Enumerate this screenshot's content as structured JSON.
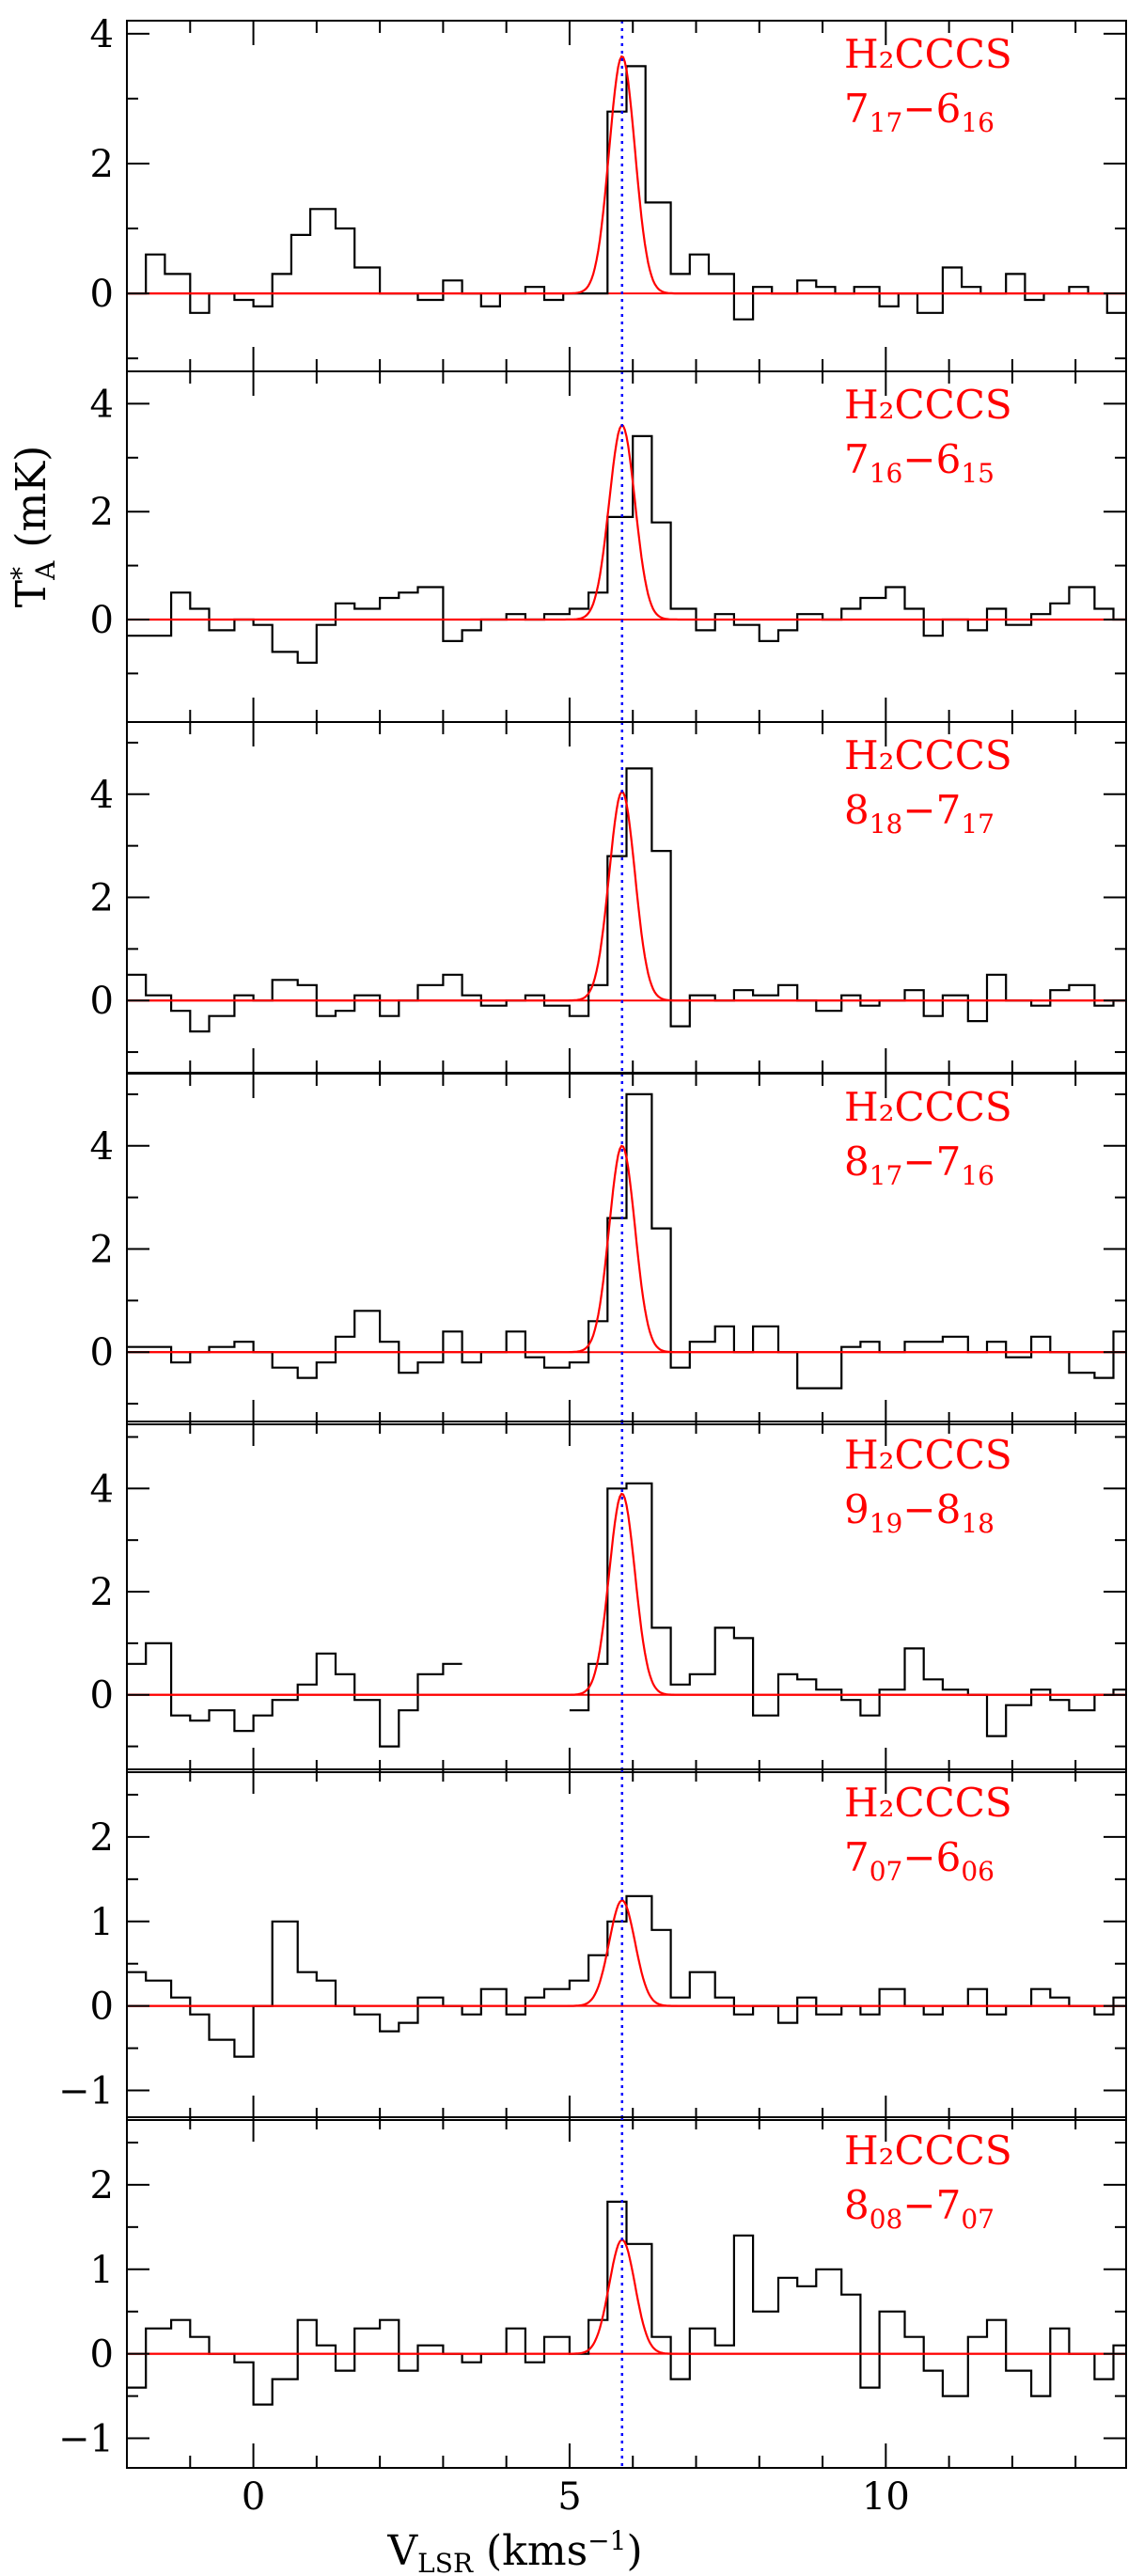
{
  "figure": {
    "xlabel": {
      "main": "V",
      "sub": "LSR",
      "rest": " (kms",
      "sup": "−1",
      "close": ")"
    },
    "ylabel": {
      "main": "T",
      "sup": "*",
      "sub": "A",
      "rest": " (mK)"
    },
    "xlim": [
      -2,
      13.8
    ],
    "xticks": [
      0,
      5,
      10
    ],
    "vlsr_line": 5.83,
    "colors": {
      "spectrum": "#000000",
      "fit": "#ff0000",
      "vline": "#0000ff",
      "label": "#ff0000"
    }
  },
  "chart_data": [
    {
      "type": "line",
      "title": "",
      "xlabel": "V_LSR (kms^-1)",
      "ylabel": "T*_A (mK)",
      "label": {
        "molecule": "H₂CCCS",
        "q1": "7",
        "s1": "17",
        "q2": "6",
        "s2": "16"
      },
      "ylim": [
        -1.2,
        4.2
      ],
      "yticks": [
        0,
        2,
        4
      ],
      "ytick_labels": [
        "0",
        "2",
        "4"
      ],
      "step_edges": [
        -2.0,
        -1.7,
        -1.4,
        -1.0,
        -0.7,
        -0.3,
        0.0,
        0.3,
        0.6,
        0.9,
        1.3,
        1.6,
        2.0,
        2.3,
        2.6,
        3.0,
        3.3,
        3.6,
        3.9,
        4.3,
        4.6,
        4.9,
        5.2,
        5.6,
        5.9,
        6.2,
        6.6,
        6.9,
        7.2,
        7.6,
        7.9,
        8.2,
        8.6,
        8.9,
        9.2,
        9.5,
        9.9,
        10.2,
        10.5,
        10.9,
        11.2,
        11.5,
        11.9,
        12.2,
        12.5,
        12.9,
        13.2,
        13.5,
        13.8
      ],
      "spectrum": [
        0.0,
        0.6,
        0.3,
        -0.3,
        0.0,
        -0.1,
        -0.2,
        0.3,
        0.9,
        1.3,
        1.0,
        0.4,
        0.0,
        0.0,
        -0.1,
        0.2,
        0.0,
        -0.2,
        0.0,
        0.1,
        -0.1,
        0.0,
        0.0,
        2.8,
        3.5,
        1.4,
        0.3,
        0.6,
        0.3,
        -0.4,
        0.1,
        0.0,
        0.2,
        0.1,
        0.0,
        0.1,
        -0.2,
        0.0,
        -0.3,
        0.4,
        0.1,
        0.0,
        0.3,
        -0.1,
        0.0,
        0.1,
        0.0,
        -0.3
      ],
      "fit": {
        "amplitude": 3.65,
        "center": 5.83,
        "fwhm": 0.48
      }
    },
    {
      "type": "line",
      "title": "",
      "xlabel": "V_LSR (kms^-1)",
      "ylabel": "T*_A (mK)",
      "label": {
        "molecule": "H₂CCCS",
        "q1": "7",
        "s1": "16",
        "q2": "6",
        "s2": "15"
      },
      "ylim": [
        -1.9,
        4.6
      ],
      "yticks": [
        0,
        2,
        4
      ],
      "ytick_labels": [
        "0",
        "2",
        "4"
      ],
      "step_edges": [
        -2.0,
        -1.7,
        -1.3,
        -1.0,
        -0.7,
        -0.3,
        0.0,
        0.3,
        0.7,
        1.0,
        1.3,
        1.6,
        2.0,
        2.3,
        2.6,
        3.0,
        3.3,
        3.6,
        4.0,
        4.3,
        4.6,
        5.0,
        5.3,
        5.6,
        6.0,
        6.3,
        6.6,
        7.0,
        7.3,
        7.6,
        8.0,
        8.3,
        8.6,
        9.0,
        9.3,
        9.6,
        10.0,
        10.3,
        10.6,
        10.9,
        11.3,
        11.6,
        11.9,
        12.3,
        12.6,
        12.9,
        13.3,
        13.6,
        13.8
      ],
      "spectrum": [
        -0.3,
        -0.3,
        0.5,
        0.2,
        -0.2,
        0.0,
        -0.1,
        -0.6,
        -0.8,
        -0.1,
        0.3,
        0.2,
        0.4,
        0.5,
        0.6,
        -0.4,
        -0.2,
        0.0,
        0.1,
        0.0,
        0.1,
        0.2,
        0.5,
        1.9,
        3.4,
        1.8,
        0.2,
        -0.2,
        0.1,
        -0.1,
        -0.4,
        -0.2,
        0.1,
        0.0,
        0.2,
        0.4,
        0.6,
        0.2,
        -0.3,
        0.0,
        -0.2,
        0.2,
        -0.1,
        0.1,
        0.3,
        0.6,
        0.2,
        0.0
      ],
      "fit": {
        "amplitude": 3.6,
        "center": 5.83,
        "fwhm": 0.48
      }
    },
    {
      "type": "line",
      "title": "",
      "xlabel": "V_LSR (kms^-1)",
      "ylabel": "T*_A (mK)",
      "label": {
        "molecule": "H₂CCCS",
        "q1": "8",
        "s1": "18",
        "q2": "7",
        "s2": "17"
      },
      "ylim": [
        -1.4,
        5.4
      ],
      "yticks": [
        0,
        2,
        4
      ],
      "ytick_labels": [
        "0",
        "2",
        "4"
      ],
      "step_edges": [
        -2.0,
        -1.7,
        -1.3,
        -1.0,
        -0.7,
        -0.3,
        0.0,
        0.3,
        0.7,
        1.0,
        1.3,
        1.6,
        2.0,
        2.3,
        2.6,
        3.0,
        3.3,
        3.6,
        4.0,
        4.3,
        4.6,
        5.0,
        5.3,
        5.6,
        5.9,
        6.3,
        6.6,
        6.9,
        7.3,
        7.6,
        7.9,
        8.3,
        8.6,
        8.9,
        9.3,
        9.6,
        9.9,
        10.3,
        10.6,
        10.9,
        11.3,
        11.6,
        11.9,
        12.3,
        12.6,
        12.9,
        13.3,
        13.6,
        13.8
      ],
      "spectrum": [
        0.5,
        0.1,
        -0.2,
        -0.6,
        -0.3,
        0.1,
        0.0,
        0.4,
        0.3,
        -0.3,
        -0.2,
        0.1,
        -0.3,
        0.0,
        0.3,
        0.5,
        0.1,
        -0.1,
        0.0,
        0.1,
        -0.1,
        -0.3,
        0.3,
        2.8,
        4.5,
        2.9,
        -0.5,
        0.1,
        0.0,
        0.2,
        0.1,
        0.3,
        0.0,
        -0.2,
        0.1,
        -0.1,
        0.0,
        0.2,
        -0.3,
        0.1,
        -0.4,
        0.5,
        0.0,
        -0.1,
        0.2,
        0.3,
        -0.1,
        0.0
      ],
      "fit": {
        "amplitude": 4.05,
        "center": 5.83,
        "fwhm": 0.48
      }
    },
    {
      "type": "line",
      "title": "",
      "xlabel": "V_LSR (kms^-1)",
      "ylabel": "T*_A (mK)",
      "label": {
        "molecule": "H₂CCCS",
        "q1": "8",
        "s1": "17",
        "q2": "7",
        "s2": "16"
      },
      "ylim": [
        -1.4,
        5.4
      ],
      "yticks": [
        0,
        2,
        4
      ],
      "ytick_labels": [
        "0",
        "2",
        "4"
      ],
      "step_edges": [
        -2.0,
        -1.7,
        -1.3,
        -1.0,
        -0.7,
        -0.3,
        0.0,
        0.3,
        0.7,
        1.0,
        1.3,
        1.6,
        2.0,
        2.3,
        2.6,
        3.0,
        3.3,
        3.6,
        4.0,
        4.3,
        4.6,
        5.0,
        5.3,
        5.6,
        5.9,
        6.3,
        6.6,
        6.9,
        7.3,
        7.6,
        7.9,
        8.3,
        8.6,
        8.9,
        9.3,
        9.6,
        9.9,
        10.3,
        10.6,
        10.9,
        11.3,
        11.6,
        11.9,
        12.3,
        12.6,
        12.9,
        13.3,
        13.6,
        13.8
      ],
      "spectrum": [
        0.1,
        0.1,
        -0.2,
        0.0,
        0.1,
        0.2,
        0.0,
        -0.3,
        -0.5,
        -0.2,
        0.3,
        0.8,
        0.2,
        -0.4,
        -0.2,
        0.4,
        -0.2,
        0.0,
        0.4,
        -0.1,
        -0.3,
        -0.2,
        0.6,
        2.6,
        5.0,
        2.4,
        -0.3,
        0.2,
        0.5,
        0.0,
        0.5,
        0.0,
        -0.7,
        -0.7,
        0.1,
        0.2,
        0.0,
        0.2,
        0.2,
        0.3,
        0.0,
        0.2,
        -0.1,
        0.3,
        0.0,
        -0.4,
        -0.5,
        0.4
      ],
      "fit": {
        "amplitude": 4.0,
        "center": 5.83,
        "fwhm": 0.48
      }
    },
    {
      "type": "line",
      "title": "",
      "xlabel": "V_LSR (kms^-1)",
      "ylabel": "T*_A (mK)",
      "label": {
        "molecule": "H₂CCCS",
        "q1": "9",
        "s1": "19",
        "q2": "8",
        "s2": "18"
      },
      "ylim": [
        -1.5,
        5.3
      ],
      "yticks": [
        0,
        2,
        4
      ],
      "ytick_labels": [
        "0",
        "2",
        "4"
      ],
      "step_edges": [
        -2.0,
        -1.7,
        -1.3,
        -1.0,
        -0.7,
        -0.3,
        0.0,
        0.3,
        0.7,
        1.0,
        1.3,
        1.6,
        2.0,
        2.3,
        2.6,
        3.0,
        3.3,
        3.6,
        4.0,
        4.3,
        4.6,
        5.0,
        5.3,
        5.6,
        5.9,
        6.3,
        6.6,
        6.9,
        7.3,
        7.6,
        7.9,
        8.3,
        8.6,
        8.9,
        9.3,
        9.6,
        9.9,
        10.3,
        10.6,
        10.9,
        11.3,
        11.6,
        11.9,
        12.3,
        12.6,
        12.9,
        13.3,
        13.6,
        13.8
      ],
      "spectrum": [
        0.6,
        1.0,
        -0.4,
        -0.5,
        -0.3,
        -0.7,
        -0.4,
        -0.1,
        0.2,
        0.8,
        0.4,
        -0.1,
        -1.0,
        -0.3,
        0.4,
        0.6,
        null,
        null,
        null,
        null,
        null,
        -0.3,
        0.6,
        4.0,
        4.1,
        1.3,
        0.2,
        0.4,
        1.3,
        1.1,
        -0.4,
        0.4,
        0.3,
        0.1,
        -0.1,
        -0.4,
        0.1,
        0.9,
        0.3,
        0.1,
        0.0,
        -0.8,
        -0.2,
        0.1,
        -0.1,
        -0.3,
        0.0,
        0.1
      ],
      "fit": {
        "amplitude": 3.9,
        "center": 5.83,
        "fwhm": 0.48
      }
    },
    {
      "type": "line",
      "title": "",
      "xlabel": "V_LSR (kms^-1)",
      "ylabel": "T*_A (mK)",
      "label": {
        "molecule": "H₂CCCS",
        "q1": "7",
        "s1": "07",
        "q2": "6",
        "s2": "06"
      },
      "ylim": [
        -1.35,
        2.8
      ],
      "yticks": [
        -1,
        0,
        1,
        2
      ],
      "ytick_labels": [
        "−1",
        "0",
        "1",
        "2"
      ],
      "step_edges": [
        -2.0,
        -1.7,
        -1.3,
        -1.0,
        -0.7,
        -0.3,
        0.0,
        0.3,
        0.7,
        1.0,
        1.3,
        1.6,
        2.0,
        2.3,
        2.6,
        3.0,
        3.3,
        3.6,
        4.0,
        4.3,
        4.6,
        5.0,
        5.3,
        5.6,
        5.9,
        6.3,
        6.6,
        6.9,
        7.3,
        7.6,
        7.9,
        8.3,
        8.6,
        8.9,
        9.3,
        9.6,
        9.9,
        10.3,
        10.6,
        10.9,
        11.3,
        11.6,
        11.9,
        12.3,
        12.6,
        12.9,
        13.3,
        13.6,
        13.8
      ],
      "spectrum": [
        0.4,
        0.3,
        0.1,
        -0.1,
        -0.4,
        -0.6,
        0.0,
        1.0,
        0.4,
        0.3,
        0.0,
        -0.1,
        -0.3,
        -0.2,
        0.1,
        0.0,
        -0.1,
        0.2,
        -0.1,
        0.1,
        0.2,
        0.3,
        0.6,
        1.0,
        1.3,
        0.9,
        0.1,
        0.4,
        0.1,
        -0.1,
        0.0,
        -0.2,
        0.1,
        -0.1,
        0.0,
        -0.1,
        0.2,
        0.0,
        -0.1,
        0.0,
        0.2,
        -0.1,
        0.0,
        0.2,
        0.1,
        0.0,
        -0.1,
        0.1
      ],
      "fit": {
        "amplitude": 1.25,
        "center": 5.83,
        "fwhm": 0.48
      }
    },
    {
      "type": "line",
      "title": "",
      "xlabel": "V_LSR (kms^-1)",
      "ylabel": "T*_A (mK)",
      "label": {
        "molecule": "H₂CCCS",
        "q1": "8",
        "s1": "08",
        "q2": "7",
        "s2": "07"
      },
      "ylim": [
        -1.35,
        2.8
      ],
      "yticks": [
        -1,
        0,
        1,
        2
      ],
      "ytick_labels": [
        "−1",
        "0",
        "1",
        "2"
      ],
      "step_edges": [
        -2.0,
        -1.7,
        -1.3,
        -1.0,
        -0.7,
        -0.3,
        0.0,
        0.3,
        0.7,
        1.0,
        1.3,
        1.6,
        2.0,
        2.3,
        2.6,
        3.0,
        3.3,
        3.6,
        4.0,
        4.3,
        4.6,
        5.0,
        5.3,
        5.6,
        5.9,
        6.3,
        6.6,
        6.9,
        7.3,
        7.6,
        7.9,
        8.3,
        8.6,
        8.9,
        9.3,
        9.6,
        9.9,
        10.3,
        10.6,
        10.9,
        11.3,
        11.6,
        11.9,
        12.3,
        12.6,
        12.9,
        13.3,
        13.6,
        13.8
      ],
      "spectrum": [
        -0.4,
        0.3,
        0.4,
        0.2,
        0.0,
        -0.1,
        -0.6,
        -0.3,
        0.4,
        0.1,
        -0.2,
        0.3,
        0.4,
        -0.2,
        0.1,
        0.0,
        -0.1,
        0.0,
        0.3,
        -0.1,
        0.2,
        0.0,
        0.4,
        1.8,
        1.3,
        0.2,
        -0.3,
        0.3,
        0.1,
        1.4,
        0.5,
        0.9,
        0.8,
        1.0,
        0.7,
        -0.4,
        0.5,
        0.2,
        -0.2,
        -0.5,
        0.2,
        0.4,
        -0.2,
        -0.5,
        0.3,
        0.0,
        -0.3,
        0.1
      ],
      "fit": {
        "amplitude": 1.35,
        "center": 5.83,
        "fwhm": 0.48
      }
    }
  ]
}
